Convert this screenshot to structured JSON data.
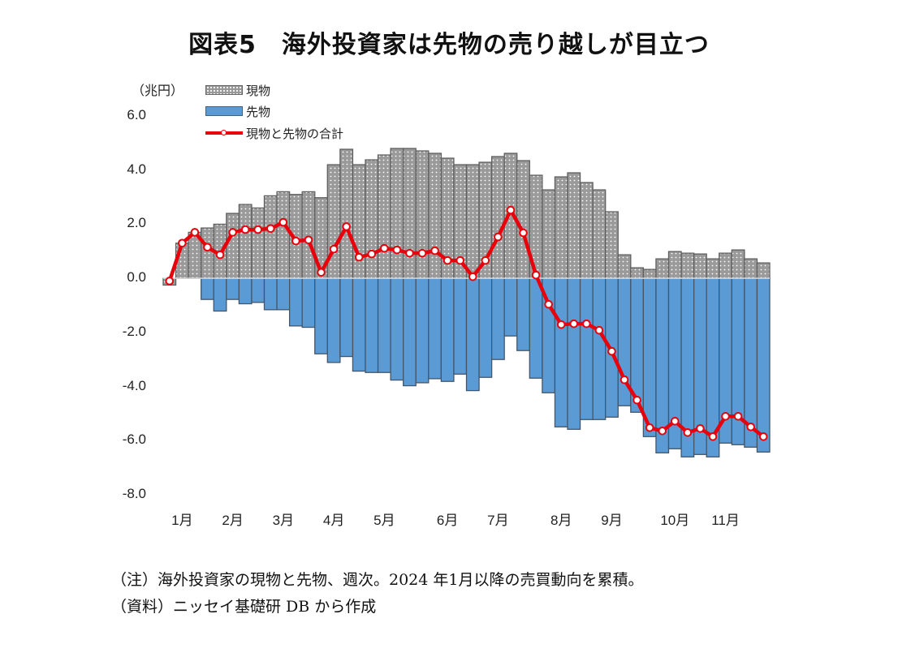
{
  "chart_data": {
    "type": "bar",
    "title": "図表5　海外投資家は先物の売り越しが目立つ",
    "ylabel": "（兆円）",
    "xlabel": "",
    "ylim": [
      -8.0,
      6.0
    ],
    "yticks": [
      "6.0",
      "4.0",
      "2.0",
      "0.0",
      "-2.0",
      "-4.0",
      "-6.0",
      "-8.0"
    ],
    "ytick_values": [
      6,
      4,
      2,
      0,
      -2,
      -4,
      -6,
      -8
    ],
    "x_tick_labels": [
      {
        "label": "1月",
        "week_index": 1
      },
      {
        "label": "2月",
        "week_index": 5
      },
      {
        "label": "3月",
        "week_index": 9
      },
      {
        "label": "4月",
        "week_index": 13
      },
      {
        "label": "5月",
        "week_index": 17
      },
      {
        "label": "6月",
        "week_index": 22
      },
      {
        "label": "7月",
        "week_index": 26
      },
      {
        "label": "8月",
        "week_index": 31
      },
      {
        "label": "9月",
        "week_index": 35
      },
      {
        "label": "10月",
        "week_index": 40
      },
      {
        "label": "11月",
        "week_index": 44
      }
    ],
    "grid": false,
    "legend_position": "top-left",
    "series": [
      {
        "name": "現物",
        "kind": "bar",
        "color": "#9a9a9a",
        "values": [
          -0.25,
          1.3,
          1.7,
          1.86,
          2.0,
          2.4,
          2.73,
          2.6,
          3.05,
          3.2,
          3.1,
          3.2,
          2.98,
          4.2,
          4.77,
          4.2,
          4.38,
          4.56,
          4.8,
          4.8,
          4.71,
          4.62,
          4.44,
          4.2,
          4.2,
          4.29,
          4.5,
          4.62,
          4.35,
          3.81,
          3.27,
          3.75,
          3.9,
          3.54,
          3.27,
          2.46,
          0.87,
          0.39,
          0.33,
          0.72,
          0.99,
          0.93,
          0.9,
          0.72,
          0.93,
          1.05,
          0.72,
          0.57
        ]
      },
      {
        "name": "先物",
        "kind": "bar",
        "color": "#5b9bd5",
        "values": [
          0,
          0,
          0,
          -0.78,
          -1.21,
          -0.78,
          -0.94,
          -0.89,
          -1.16,
          -1.16,
          -1.76,
          -1.81,
          -2.79,
          -3.11,
          -2.89,
          -3.43,
          -3.48,
          -3.48,
          -3.76,
          -3.97,
          -3.86,
          -3.71,
          -3.81,
          -3.54,
          -4.15,
          -3.66,
          -3.0,
          -2.13,
          -2.67,
          -3.69,
          -4.23,
          -5.49,
          -5.58,
          -5.22,
          -5.22,
          -5.13,
          -4.71,
          -4.95,
          -5.85,
          -6.45,
          -6.3,
          -6.6,
          -6.51,
          -6.6,
          -6.09,
          -6.15,
          -6.24,
          -6.42
        ]
      },
      {
        "name": "現物と先物の合計",
        "kind": "line",
        "color": "#e8000b",
        "values": [
          -0.1,
          1.3,
          1.7,
          1.15,
          0.87,
          1.7,
          1.8,
          1.8,
          1.84,
          2.07,
          1.38,
          1.42,
          0.22,
          1.08,
          1.91,
          0.78,
          0.9,
          1.11,
          1.05,
          0.93,
          0.93,
          1.02,
          0.66,
          0.66,
          0.06,
          0.66,
          1.53,
          2.52,
          1.68,
          0.12,
          -0.96,
          -1.71,
          -1.68,
          -1.68,
          -1.92,
          -2.7,
          -3.75,
          -4.5,
          -5.52,
          -5.64,
          -5.28,
          -5.7,
          -5.55,
          -5.85,
          -5.1,
          -5.1,
          -5.49,
          -5.85
        ]
      }
    ]
  },
  "legend": {
    "spot_label": "現物",
    "futures_label": "先物",
    "total_label": "現物と先物の合計"
  },
  "notes": {
    "note": "（注）海外投資家の現物と先物、週次。2024 年1月以降の売買動向を累積。",
    "source": "（資料）ニッセイ基礎研 DB から作成"
  }
}
